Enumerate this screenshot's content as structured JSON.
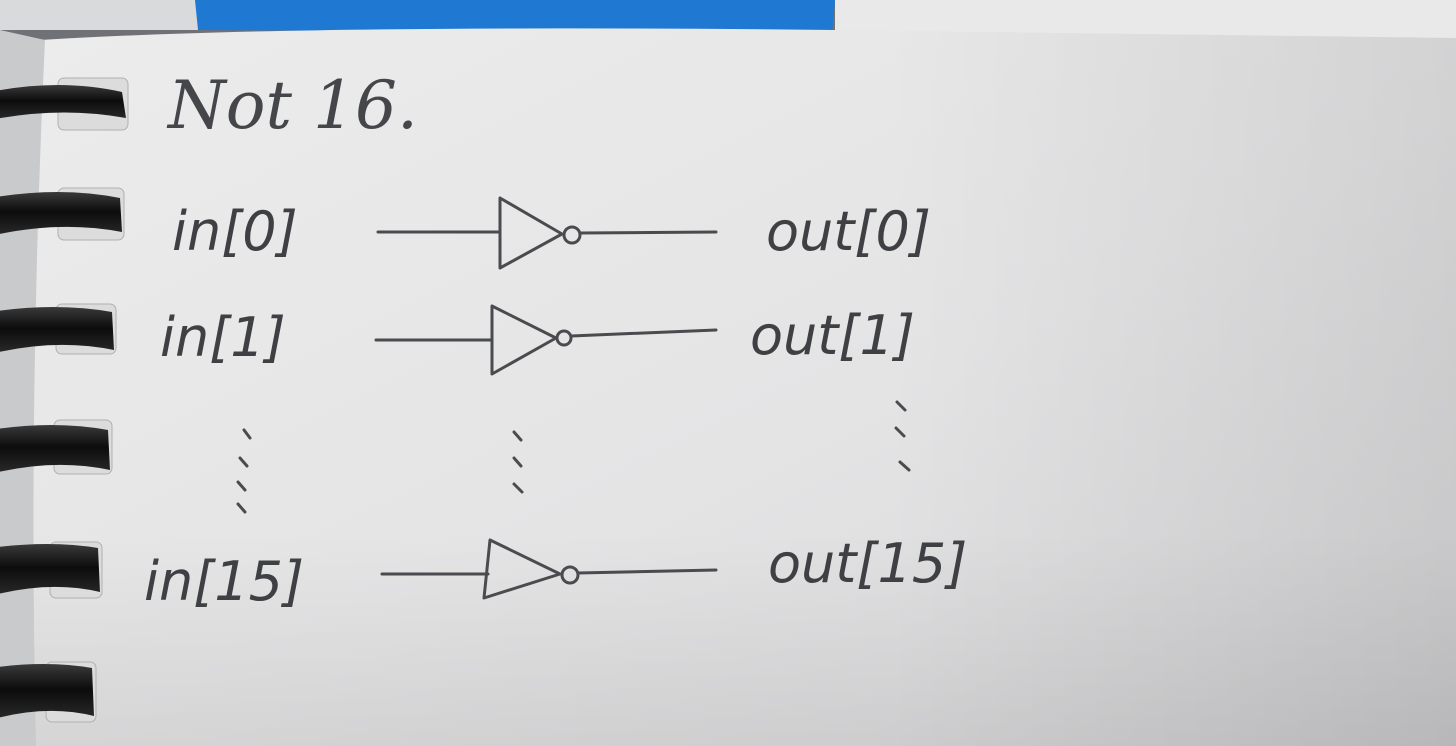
{
  "title": "Not 16.",
  "inputs": {
    "in0": "in[0]",
    "in1": "in[1]",
    "in15": "in[15]"
  },
  "outputs": {
    "out0": "out[0]",
    "out1": "out[1]",
    "out15": "out[15]"
  },
  "colors": {
    "paper": "#e6e6e6",
    "pencil": "#3f4044",
    "blue_cover": "#1f78d1",
    "ring": "#151515"
  },
  "icons": {
    "gate": "not-gate-icon",
    "ring": "spiral-ring-icon",
    "ellipsis": "vertical-ellipsis-icon"
  }
}
